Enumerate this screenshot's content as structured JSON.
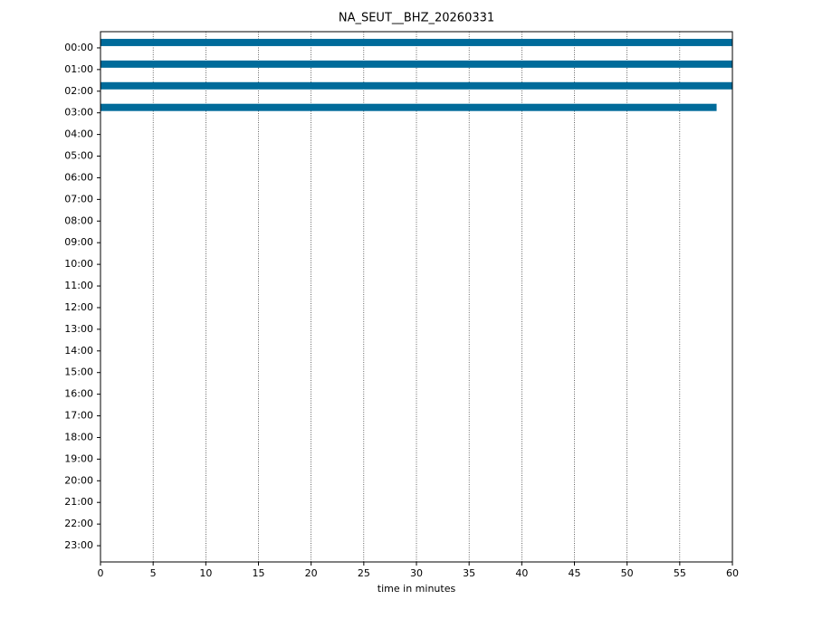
{
  "chart_data": {
    "type": "helicorder",
    "title": "NA_SEUT__BHZ_20260331",
    "x_label": "time in minutes",
    "categories": [
      "00:00",
      "01:00",
      "02:00",
      "03:00",
      "04:00",
      "05:00",
      "06:00",
      "07:00",
      "08:00",
      "09:00",
      "10:00",
      "11:00",
      "12:00",
      "13:00",
      "14:00",
      "15:00",
      "16:00",
      "17:00",
      "18:00",
      "19:00",
      "20:00",
      "21:00",
      "22:00",
      "23:00"
    ],
    "traces": [
      {
        "x": [
          0,
          60
        ]
      },
      {
        "x": [
          0,
          60
        ]
      },
      {
        "x": [
          0,
          60
        ]
      },
      {
        "x": [
          0,
          58.5
        ]
      }
    ],
    "color": "#006b9a",
    "xlim": [
      0,
      60
    ],
    "xticks": [
      0,
      5,
      10,
      15,
      20,
      25,
      30,
      35,
      40,
      45,
      50,
      55,
      60
    ],
    "grid": true
  }
}
